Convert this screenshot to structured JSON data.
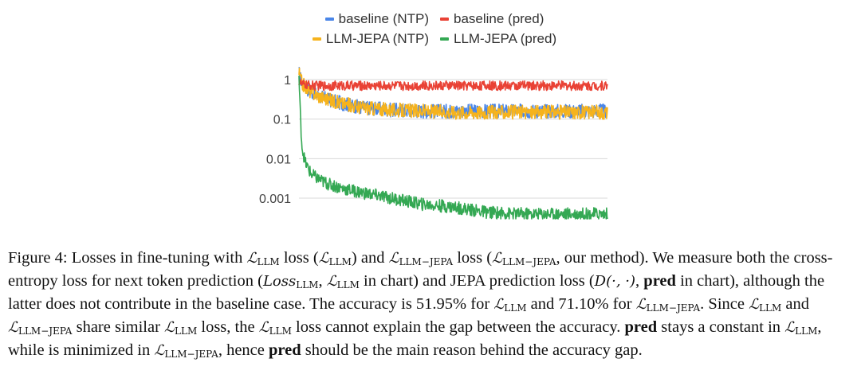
{
  "chart_data": {
    "type": "line",
    "title": "",
    "xlabel": "",
    "ylabel": "",
    "yscale": "log",
    "ylim": [
      0.0003,
      2
    ],
    "yticks": [
      1,
      0.1,
      0.01,
      0.001
    ],
    "ytick_labels": [
      "1",
      "0.1",
      "0.01",
      "0.001"
    ],
    "grid": "horizontal",
    "legend_position": "top",
    "series": [
      {
        "name": "baseline (NTP)",
        "color": "#4a86e8",
        "x": [
          0,
          0.01,
          0.03,
          0.06,
          0.1,
          0.15,
          0.2,
          0.3,
          0.4,
          0.5,
          0.6,
          0.7,
          0.8,
          0.9,
          1.0
        ],
        "y": [
          1.5,
          0.8,
          0.55,
          0.4,
          0.3,
          0.24,
          0.2,
          0.17,
          0.16,
          0.16,
          0.16,
          0.16,
          0.16,
          0.16,
          0.16
        ]
      },
      {
        "name": "baseline (pred)",
        "color": "#e94235",
        "x": [
          0,
          0.01,
          0.05,
          0.2,
          0.4,
          0.6,
          0.8,
          1.0
        ],
        "y": [
          0.9,
          0.75,
          0.7,
          0.7,
          0.7,
          0.7,
          0.7,
          0.7
        ]
      },
      {
        "name": "LLM-JEPA (NTP)",
        "color": "#f6b31d",
        "x": [
          0,
          0.01,
          0.03,
          0.06,
          0.1,
          0.15,
          0.2,
          0.3,
          0.4,
          0.5,
          0.6,
          0.7,
          0.8,
          0.9,
          1.0
        ],
        "y": [
          1.5,
          0.8,
          0.55,
          0.4,
          0.3,
          0.24,
          0.2,
          0.17,
          0.16,
          0.15,
          0.15,
          0.15,
          0.15,
          0.15,
          0.15
        ]
      },
      {
        "name": "LLM-JEPA (pred)",
        "color": "#34a853",
        "x": [
          0,
          0.005,
          0.01,
          0.02,
          0.04,
          0.07,
          0.1,
          0.15,
          0.2,
          0.3,
          0.4,
          0.5,
          0.6,
          0.7,
          0.8,
          0.9,
          1.0
        ],
        "y": [
          1.2,
          0.1,
          0.02,
          0.008,
          0.004,
          0.0028,
          0.0022,
          0.0017,
          0.0014,
          0.001,
          0.0007,
          0.0006,
          0.00045,
          0.0004,
          0.0004,
          0.0004,
          0.0004
        ]
      }
    ]
  },
  "caption": {
    "figure_label": "Figure 4:",
    "line1_a": "Losses in fine-tuning with",
    "llm": "LLM",
    "llm_jepa": "LLM−JEPA",
    "line1_b": "loss (",
    "line1_c": ") and",
    "line1_d": "loss (",
    "line1_e": ", our method). We",
    "line2_a": "measure both the cross-entropy loss for next token prediction (",
    "loss_llm": "Loss",
    "line2_b": ",",
    "line2_c": "in chart) and JEPA prediction",
    "line3_a": "loss (",
    "dfunc": "D(·, ·)",
    "line3_b": ",",
    "pred": "pred",
    "line3_c": "in chart), although the latter does not contribute in the baseline case. The accuracy is 51.95%",
    "line4_a": "for",
    "line4_b": "and 71.10% for",
    "line4_c": ". Since",
    "line4_d": "and",
    "line4_e": "share similar",
    "line4_f": "loss, the",
    "line4_g": "loss",
    "line5_a": "cannot explain the gap between the accuracy.",
    "line5_b": "stays a constant in",
    "line5_c": ", while is minimized in",
    "line5_d": ",",
    "line6_a": "hence",
    "line6_b": "should be the main reason behind the accuracy gap."
  }
}
